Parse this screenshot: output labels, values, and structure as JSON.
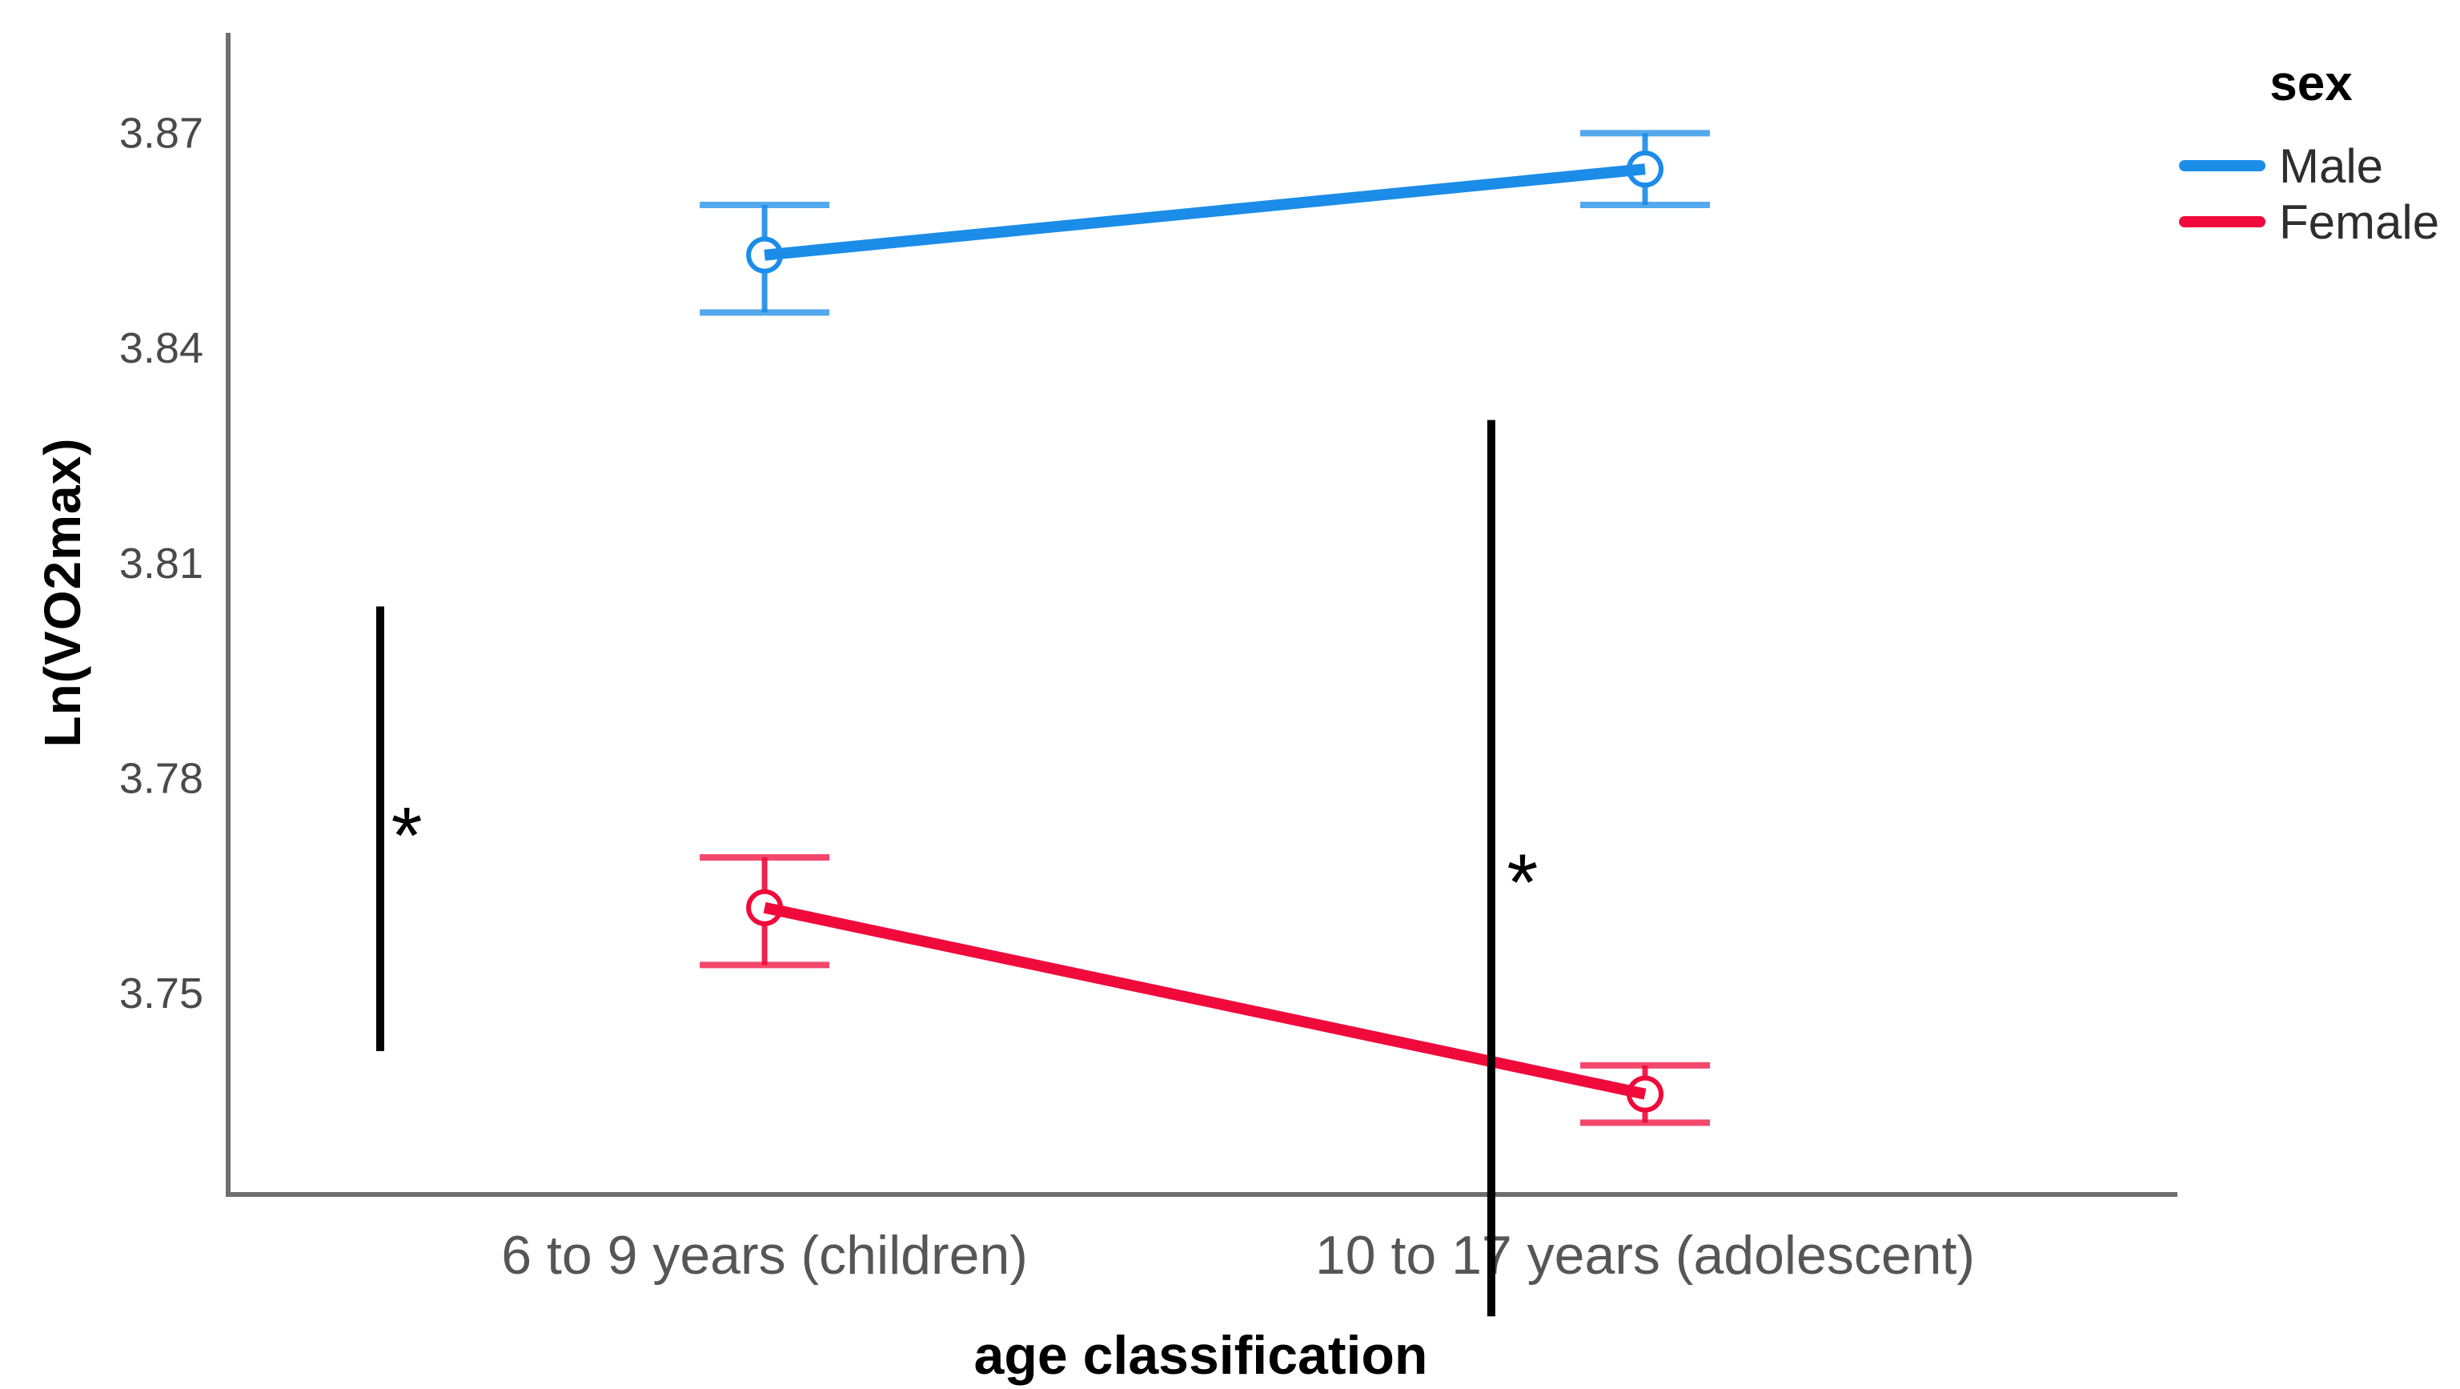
{
  "chart_data": {
    "type": "line",
    "title": "",
    "xlabel": "age classification",
    "ylabel": "Ln(VO2max)",
    "categories": [
      "6 to 9 years (children)",
      "10 to 17 years (adolescent)"
    ],
    "series": [
      {
        "name": "Male",
        "color": "#1B8CE8",
        "values": [
          3.853,
          3.865
        ],
        "ci_low": [
          3.845,
          3.86
        ],
        "ci_high": [
          3.86,
          3.87
        ]
      },
      {
        "name": "Female",
        "color": "#F00A3C",
        "values": [
          3.762,
          3.736
        ],
        "ci_low": [
          3.754,
          3.732
        ],
        "ci_high": [
          3.769,
          3.74
        ]
      }
    ],
    "ylim": [
      3.722,
      3.884
    ],
    "yticks": [
      "3.87",
      "3.84",
      "3.81",
      "3.78",
      "3.75"
    ],
    "grid": false,
    "marker": "open-circle",
    "error_bars": "95% CI",
    "legend": {
      "title": "sex",
      "position": "top-right",
      "items": [
        {
          "label": "Male"
        },
        {
          "label": "Female"
        }
      ]
    },
    "annotations": {
      "star_symbol": "*",
      "significance_bars": [
        {
          "x_frac": 0.078,
          "v_top": 3.804,
          "v_bottom": 3.742,
          "star_x_frac": 0.0916,
          "star_v": 3.774
        },
        {
          "x_frac": 0.648,
          "v_top": 3.83,
          "v_bottom": 3.705,
          "star_x_frac": 0.664,
          "star_v": 3.7675
        }
      ]
    },
    "colors": {
      "axis": "#6E6E6E",
      "tick_text": "#4A4A4A",
      "category_text": "#565656",
      "annotation": "#000000"
    }
  }
}
